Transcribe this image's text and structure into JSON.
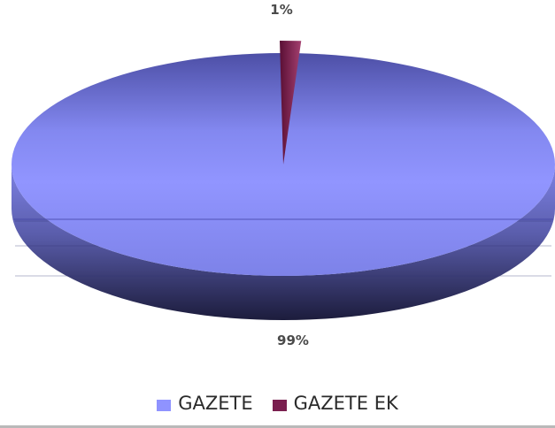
{
  "chart_data": {
    "type": "pie",
    "title": "",
    "categories": [
      "GAZETE",
      "GAZETE EK"
    ],
    "values": [
      99,
      1
    ],
    "data_labels": [
      "99%",
      "1%"
    ],
    "colors": [
      "#8f93ff",
      "#7a1f4f"
    ],
    "legend_position": "bottom",
    "style": "3d"
  }
}
